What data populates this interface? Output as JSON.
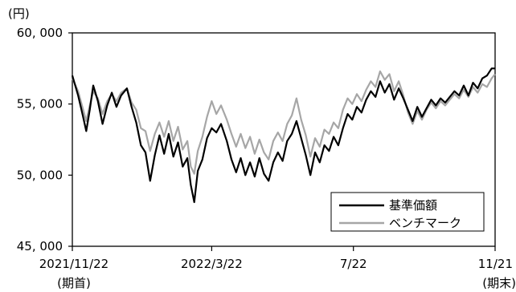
{
  "chart_data": {
    "type": "line",
    "y_unit_label": "(円)",
    "ylim": [
      45000,
      60000
    ],
    "y_ticks": [
      {
        "value": 45000,
        "label": "45, 000"
      },
      {
        "value": 50000,
        "label": "50, 000"
      },
      {
        "value": 55000,
        "label": "55, 000"
      },
      {
        "value": 60000,
        "label": "60, 000"
      }
    ],
    "x_ticks": [
      {
        "date": "2021-11-22",
        "label": "2021/11/22",
        "sublabel": "(期首)"
      },
      {
        "date": "2022-03-22",
        "label": "2022/3/22",
        "sublabel": ""
      },
      {
        "date": "2022-07-22",
        "label": "7/22",
        "sublabel": ""
      },
      {
        "date": "2022-11-21",
        "label": "11/21",
        "sublabel": "(期末)"
      }
    ],
    "grid": false,
    "legend_position": "bottom-right",
    "series": [
      {
        "name": "基準価額",
        "color": "#000000",
        "points": [
          [
            "2021-11-22",
            57000
          ],
          [
            "2021-11-27",
            55600
          ],
          [
            "2021-12-01",
            54200
          ],
          [
            "2021-12-04",
            53100
          ],
          [
            "2021-12-07",
            54600
          ],
          [
            "2021-12-10",
            56300
          ],
          [
            "2021-12-14",
            55200
          ],
          [
            "2021-12-18",
            53600
          ],
          [
            "2021-12-22",
            54900
          ],
          [
            "2021-12-26",
            55800
          ],
          [
            "2021-12-30",
            54800
          ],
          [
            "2022-01-03",
            55600
          ],
          [
            "2022-01-08",
            56100
          ],
          [
            "2022-01-12",
            54800
          ],
          [
            "2022-01-16",
            53700
          ],
          [
            "2022-01-20",
            52100
          ],
          [
            "2022-01-24",
            51600
          ],
          [
            "2022-01-28",
            49600
          ],
          [
            "2022-02-01",
            51400
          ],
          [
            "2022-02-05",
            52800
          ],
          [
            "2022-02-09",
            51500
          ],
          [
            "2022-02-13",
            52900
          ],
          [
            "2022-02-17",
            51300
          ],
          [
            "2022-02-21",
            52300
          ],
          [
            "2022-02-25",
            50600
          ],
          [
            "2022-03-01",
            51200
          ],
          [
            "2022-03-04",
            49300
          ],
          [
            "2022-03-07",
            48100
          ],
          [
            "2022-03-10",
            50300
          ],
          [
            "2022-03-14",
            51100
          ],
          [
            "2022-03-18",
            52600
          ],
          [
            "2022-03-22",
            53300
          ],
          [
            "2022-03-26",
            53000
          ],
          [
            "2022-03-30",
            53600
          ],
          [
            "2022-04-04",
            52400
          ],
          [
            "2022-04-08",
            51100
          ],
          [
            "2022-04-12",
            50200
          ],
          [
            "2022-04-16",
            51200
          ],
          [
            "2022-04-20",
            50000
          ],
          [
            "2022-04-24",
            50900
          ],
          [
            "2022-04-28",
            49900
          ],
          [
            "2022-05-02",
            51200
          ],
          [
            "2022-05-06",
            50100
          ],
          [
            "2022-05-10",
            49600
          ],
          [
            "2022-05-14",
            50900
          ],
          [
            "2022-05-18",
            51600
          ],
          [
            "2022-05-22",
            51000
          ],
          [
            "2022-05-26",
            52400
          ],
          [
            "2022-05-30",
            52900
          ],
          [
            "2022-06-03",
            53800
          ],
          [
            "2022-06-07",
            52600
          ],
          [
            "2022-06-11",
            51400
          ],
          [
            "2022-06-15",
            50000
          ],
          [
            "2022-06-19",
            51600
          ],
          [
            "2022-06-23",
            50900
          ],
          [
            "2022-06-27",
            52100
          ],
          [
            "2022-07-01",
            51700
          ],
          [
            "2022-07-05",
            52700
          ],
          [
            "2022-07-09",
            52100
          ],
          [
            "2022-07-13",
            53300
          ],
          [
            "2022-07-17",
            54300
          ],
          [
            "2022-07-21",
            53900
          ],
          [
            "2022-07-25",
            54800
          ],
          [
            "2022-07-29",
            54400
          ],
          [
            "2022-08-02",
            55300
          ],
          [
            "2022-08-06",
            55900
          ],
          [
            "2022-08-10",
            55500
          ],
          [
            "2022-08-14",
            56600
          ],
          [
            "2022-08-18",
            55800
          ],
          [
            "2022-08-22",
            56400
          ],
          [
            "2022-08-26",
            55300
          ],
          [
            "2022-08-30",
            56100
          ],
          [
            "2022-09-03",
            55400
          ],
          [
            "2022-09-07",
            54600
          ],
          [
            "2022-09-11",
            53800
          ],
          [
            "2022-09-15",
            54800
          ],
          [
            "2022-09-19",
            54100
          ],
          [
            "2022-09-23",
            54700
          ],
          [
            "2022-09-27",
            55300
          ],
          [
            "2022-10-01",
            54900
          ],
          [
            "2022-10-05",
            55400
          ],
          [
            "2022-10-09",
            55100
          ],
          [
            "2022-10-13",
            55500
          ],
          [
            "2022-10-17",
            55900
          ],
          [
            "2022-10-21",
            55600
          ],
          [
            "2022-10-25",
            56300
          ],
          [
            "2022-10-29",
            55600
          ],
          [
            "2022-11-02",
            56500
          ],
          [
            "2022-11-06",
            56100
          ],
          [
            "2022-11-10",
            56800
          ],
          [
            "2022-11-14",
            57000
          ],
          [
            "2022-11-18",
            57500
          ],
          [
            "2022-11-21",
            57500
          ]
        ]
      },
      {
        "name": "ベンチマーク",
        "color": "#a6a6a6",
        "points": [
          [
            "2021-11-22",
            56800
          ],
          [
            "2021-11-27",
            55900
          ],
          [
            "2021-12-01",
            54700
          ],
          [
            "2021-12-04",
            53800
          ],
          [
            "2021-12-07",
            54900
          ],
          [
            "2021-12-10",
            55900
          ],
          [
            "2021-12-14",
            55400
          ],
          [
            "2021-12-18",
            54300
          ],
          [
            "2021-12-22",
            55200
          ],
          [
            "2021-12-26",
            55700
          ],
          [
            "2021-12-30",
            55200
          ],
          [
            "2022-01-03",
            55800
          ],
          [
            "2022-01-08",
            56100
          ],
          [
            "2022-01-12",
            55100
          ],
          [
            "2022-01-16",
            54600
          ],
          [
            "2022-01-20",
            53300
          ],
          [
            "2022-01-24",
            53100
          ],
          [
            "2022-01-28",
            51700
          ],
          [
            "2022-02-01",
            52900
          ],
          [
            "2022-02-05",
            53700
          ],
          [
            "2022-02-09",
            52700
          ],
          [
            "2022-02-13",
            53800
          ],
          [
            "2022-02-17",
            52400
          ],
          [
            "2022-02-21",
            53400
          ],
          [
            "2022-02-25",
            51800
          ],
          [
            "2022-03-01",
            52400
          ],
          [
            "2022-03-04",
            50600
          ],
          [
            "2022-03-07",
            50100
          ],
          [
            "2022-03-10",
            51700
          ],
          [
            "2022-03-14",
            52700
          ],
          [
            "2022-03-18",
            54100
          ],
          [
            "2022-03-22",
            55200
          ],
          [
            "2022-03-26",
            54300
          ],
          [
            "2022-03-30",
            54900
          ],
          [
            "2022-04-04",
            53900
          ],
          [
            "2022-04-08",
            52900
          ],
          [
            "2022-04-12",
            52000
          ],
          [
            "2022-04-16",
            52900
          ],
          [
            "2022-04-20",
            51900
          ],
          [
            "2022-04-24",
            52700
          ],
          [
            "2022-04-28",
            51500
          ],
          [
            "2022-05-02",
            52500
          ],
          [
            "2022-05-06",
            51600
          ],
          [
            "2022-05-10",
            51100
          ],
          [
            "2022-05-14",
            52400
          ],
          [
            "2022-05-18",
            53000
          ],
          [
            "2022-05-22",
            52400
          ],
          [
            "2022-05-26",
            53600
          ],
          [
            "2022-05-30",
            54200
          ],
          [
            "2022-06-03",
            55400
          ],
          [
            "2022-06-07",
            53900
          ],
          [
            "2022-06-11",
            52800
          ],
          [
            "2022-06-15",
            51300
          ],
          [
            "2022-06-19",
            52600
          ],
          [
            "2022-06-23",
            52000
          ],
          [
            "2022-06-27",
            53200
          ],
          [
            "2022-07-01",
            52900
          ],
          [
            "2022-07-05",
            53700
          ],
          [
            "2022-07-09",
            53300
          ],
          [
            "2022-07-13",
            54600
          ],
          [
            "2022-07-17",
            55400
          ],
          [
            "2022-07-21",
            55000
          ],
          [
            "2022-07-25",
            55700
          ],
          [
            "2022-07-29",
            55200
          ],
          [
            "2022-08-02",
            56000
          ],
          [
            "2022-08-06",
            56600
          ],
          [
            "2022-08-10",
            56200
          ],
          [
            "2022-08-14",
            57300
          ],
          [
            "2022-08-18",
            56700
          ],
          [
            "2022-08-22",
            57100
          ],
          [
            "2022-08-26",
            55900
          ],
          [
            "2022-08-30",
            56600
          ],
          [
            "2022-09-03",
            55600
          ],
          [
            "2022-09-07",
            54400
          ],
          [
            "2022-09-11",
            53600
          ],
          [
            "2022-09-15",
            54500
          ],
          [
            "2022-09-19",
            53900
          ],
          [
            "2022-09-23",
            54600
          ],
          [
            "2022-09-27",
            55100
          ],
          [
            "2022-10-01",
            54700
          ],
          [
            "2022-10-05",
            55200
          ],
          [
            "2022-10-09",
            54900
          ],
          [
            "2022-10-13",
            55300
          ],
          [
            "2022-10-17",
            55700
          ],
          [
            "2022-10-21",
            55400
          ],
          [
            "2022-10-25",
            56000
          ],
          [
            "2022-10-29",
            55500
          ],
          [
            "2022-11-02",
            56200
          ],
          [
            "2022-11-06",
            55800
          ],
          [
            "2022-11-10",
            56400
          ],
          [
            "2022-11-14",
            56200
          ],
          [
            "2022-11-18",
            56800
          ],
          [
            "2022-11-21",
            57100
          ]
        ]
      }
    ]
  }
}
